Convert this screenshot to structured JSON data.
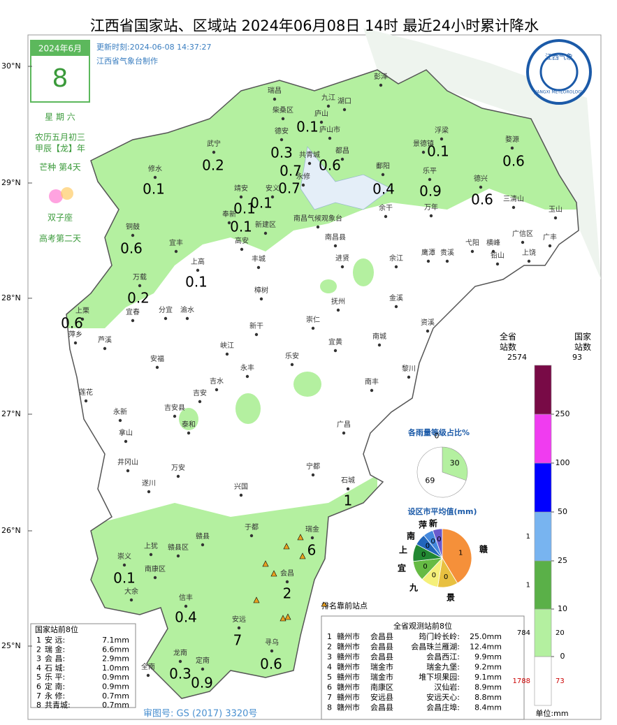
{
  "header": {
    "title": "江西省国家站、区域站   2024年06月08日 14时   最近24小时累计降水",
    "update": "更新时刻:2024-06-08 14:37:27",
    "maker": "江西省气象台制作",
    "logo_cn": "江西气象",
    "logo_en": "JIANGXI METEOROLOGY"
  },
  "calendar": {
    "month": "2024年6月",
    "day": "8",
    "weekday": "星 期 六",
    "lunar": "农历五月初三",
    "ganzhi": "甲辰【龙】年",
    "term": "芒种 第4天",
    "zodiac": "双子座",
    "note": "高考第二天"
  },
  "map": {
    "lat_labels": [
      "30°N",
      "29°N",
      "28°N",
      "27°N",
      "26°N",
      "25°N"
    ],
    "cities": [
      "彭泽",
      "瑞昌",
      "湖口",
      "柴桑区",
      "庐山",
      "庐山市",
      "德安",
      "浮梁",
      "武宁",
      "共青城",
      "都昌",
      "景德镇",
      "婺源",
      "永修",
      "鄱阳",
      "乐平",
      "修水",
      "德兴",
      "靖安",
      "安义",
      "三清山",
      "玉山",
      "余干",
      "万年",
      "奉新",
      "新建区",
      "南昌气候观象台",
      "南昌县",
      "铜鼓",
      "广信区",
      "广丰",
      "宜丰",
      "高安",
      "弋阳",
      "横峰",
      "鹰潭",
      "贵溪",
      "铅山",
      "上饶",
      "丰城",
      "进贤",
      "余江",
      "上高",
      "万载",
      "樟树",
      "抚州",
      "金溪",
      "上栗",
      "宜春",
      "分宜",
      "渝水",
      "新干",
      "崇仁",
      "资溪",
      "萍乡",
      "芦溪",
      "峡江",
      "宜黄",
      "南城",
      "安福",
      "乐安",
      "黎川",
      "永丰",
      "吉水",
      "南丰",
      "莲花",
      "吉安",
      "永新",
      "吉安县",
      "泰和",
      "广昌",
      "拿山",
      "井冈山",
      "宁都",
      "万安",
      "遂川",
      "石城",
      "兴国",
      "于都",
      "赣县",
      "瑞金",
      "上犹",
      "赣县区",
      "崇义",
      "南康区",
      "会昌",
      "大余",
      "信丰",
      "安远",
      "寻乌",
      "龙南",
      "定南",
      "全南",
      "九江"
    ],
    "rain_values": [
      0.1,
      0.3,
      0.2,
      0.7,
      0.6,
      0.1,
      0.6,
      0.1,
      0.7,
      0.4,
      0.9,
      0.6,
      0.1,
      0.1,
      0.1,
      0.6,
      0.1,
      0.2,
      0.6,
      1,
      6,
      2,
      0.1,
      0.4,
      7,
      0.6,
      0.3,
      0.9
    ],
    "top_marker_label": "排名靠前站点",
    "review_no": "审图号: GS (2017) 3320号"
  },
  "level_pie": {
    "title": "各雨量等级占比%",
    "slices": [
      {
        "value": 30,
        "color": "#b4f0a0"
      },
      {
        "value": 69,
        "color": "#ffffff"
      },
      {
        "value": 0,
        "color": "#e0e0e0"
      }
    ]
  },
  "city_pie": {
    "title": "设区市平均值(mm)",
    "slices": [
      {
        "name": "赣",
        "value": 1,
        "color": "#f5903a"
      },
      {
        "name": "景",
        "value": 0,
        "color": "#e8c040"
      },
      {
        "name": "九",
        "value": 0,
        "color": "#f5f07a"
      },
      {
        "name": "宜",
        "value": 0,
        "color": "#66bb44"
      },
      {
        "name": "上",
        "value": 0,
        "color": "#228833"
      },
      {
        "name": "南",
        "value": 0,
        "color": "#2266bb"
      },
      {
        "name": "萍",
        "value": 0,
        "color": "#4488dd"
      },
      {
        "name": "新",
        "value": 0,
        "color": "#6a5acd"
      }
    ]
  },
  "legend": {
    "province_title": "全省\n站数",
    "national_title": "国家\n站数",
    "province_total": 2574,
    "national_total": 93,
    "thresholds": [
      0,
      10,
      25,
      50,
      100,
      250
    ],
    "colors": [
      "#ffffff",
      "#b4f0a0",
      "#5ab048",
      "#78b4f0",
      "#0000ff",
      "#f03cf0",
      "#780a46"
    ],
    "province_counts": [
      1788,
      784,
      1,
      1
    ],
    "national_counts": [
      73,
      20
    ],
    "unit": "单位:mm"
  },
  "national_table": {
    "title": "国家站前8位",
    "rows": [
      [
        "1",
        "安  远:",
        "7.1mm"
      ],
      [
        "2",
        "瑞  金:",
        "6.6mm"
      ],
      [
        "3",
        "会  昌:",
        "2.9mm"
      ],
      [
        "4",
        "石  城:",
        "1.0mm"
      ],
      [
        "5",
        "乐  平:",
        "0.9mm"
      ],
      [
        "6",
        "定  南:",
        "0.9mm"
      ],
      [
        "7",
        "永  修:",
        "0.7mm"
      ],
      [
        "8",
        "共青城:",
        "0.7mm"
      ]
    ]
  },
  "province_table": {
    "title": "全省观测站前8位",
    "rows": [
      [
        "1",
        "赣州市",
        "会昌县",
        "筠门岭长岭:",
        "25.0mm"
      ],
      [
        "2",
        "赣州市",
        "会昌县",
        "会昌珠兰雁湖:",
        "12.4mm"
      ],
      [
        "3",
        "赣州市",
        "会昌县",
        "会昌西江:",
        "9.9mm"
      ],
      [
        "4",
        "赣州市",
        "瑞金市",
        "瑞金九堡:",
        "9.2mm"
      ],
      [
        "5",
        "赣州市",
        "瑞金市",
        "堆下坝果园:",
        "9.1mm"
      ],
      [
        "6",
        "赣州市",
        "南康区",
        "汉仙岩:",
        "8.9mm"
      ],
      [
        "7",
        "赣州市",
        "安远县",
        "安远天心:",
        "8.8mm"
      ],
      [
        "8",
        "赣州市",
        "会昌县",
        "会昌庄埠:",
        "8.4mm"
      ]
    ]
  }
}
